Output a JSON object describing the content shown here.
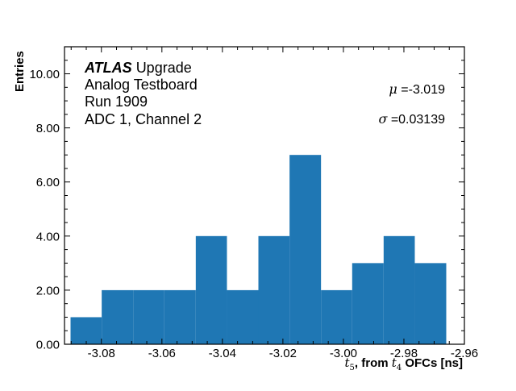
{
  "chart_data": {
    "type": "bar",
    "subtype": "histogram",
    "title": "",
    "xlabel": "t5, from t4 OFCs [ns]",
    "ylabel": "Entries",
    "xlim": [
      -3.0922,
      -2.96
    ],
    "ylim": [
      0,
      11
    ],
    "bin_edges": [
      -3.0902,
      -3.0799,
      -3.0695,
      -3.0592,
      -3.0488,
      -3.0385,
      -3.0281,
      -3.0178,
      -3.0074,
      -2.9971,
      -2.9867,
      -2.9764,
      -2.966
    ],
    "values": [
      1,
      2,
      2,
      2,
      4,
      2,
      4,
      7,
      2,
      3,
      4,
      3
    ],
    "x_ticks": [
      -3.08,
      -3.06,
      -3.04,
      -3.02,
      -3.0,
      -2.98,
      -2.96
    ],
    "x_tick_labels": [
      "-3.08",
      "-3.06",
      "-3.04",
      "-3.02",
      "-3.00",
      "-2.98",
      "-2.96"
    ],
    "y_ticks": [
      0,
      2,
      4,
      6,
      8,
      10
    ],
    "y_tick_labels": [
      "0.00",
      "2.00",
      "4.00",
      "6.00",
      "8.00",
      "10.00"
    ],
    "color": "#1f77b4",
    "grid": false,
    "legend": null,
    "annotations": {
      "atlas": "ATLAS",
      "atlas_suffix": "Upgrade",
      "line2": "Analog Testboard",
      "line3": "Run 1909",
      "line4": "ADC 1, Channel 2",
      "mu_symbol": "μ",
      "mu_value": "=-3.019",
      "sigma_symbol": "σ",
      "sigma_value": "=0.03139"
    }
  },
  "axes": {
    "xlabel_t": "t",
    "xlabel_sub5": "5",
    "xlabel_mid": ", from ",
    "xlabel_sub4": "4",
    "xlabel_end": " OFCs [ns]"
  }
}
